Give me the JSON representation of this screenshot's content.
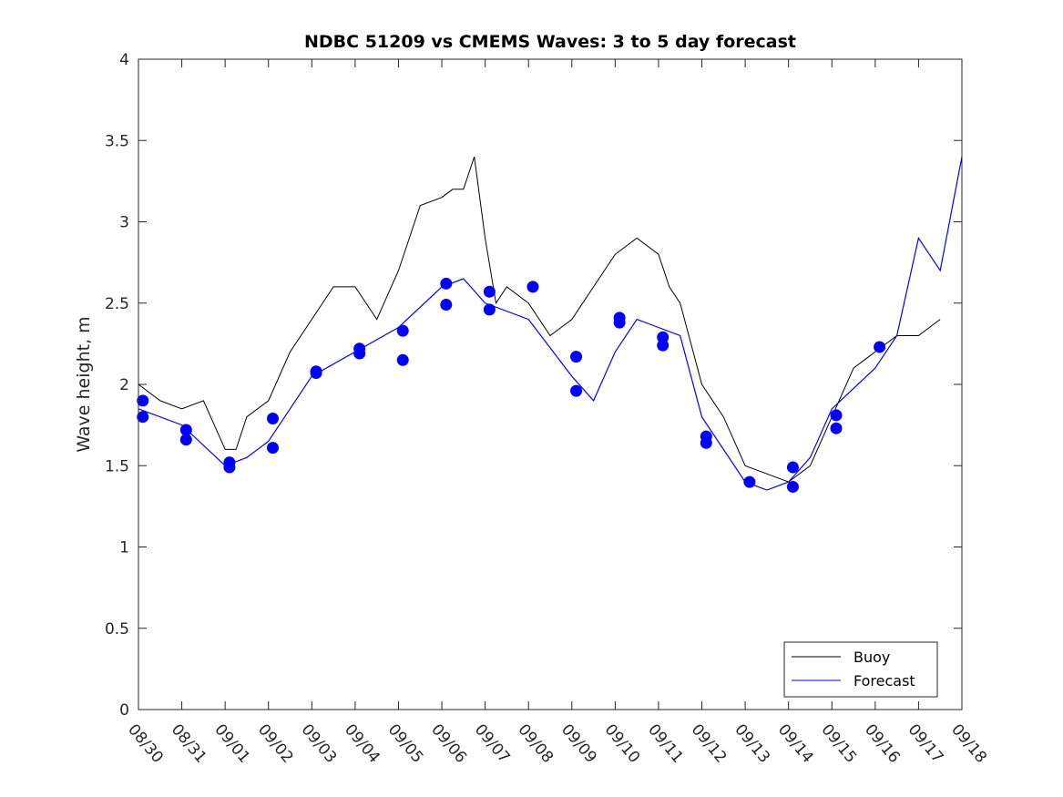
{
  "chart_data": {
    "type": "line",
    "title": "NDBC 51209 vs CMEMS Waves: 3 to 5 day forecast",
    "xlabel": "",
    "ylabel": "Wave height, m",
    "ylim": [
      0,
      4
    ],
    "yticks": [
      0,
      0.5,
      1,
      1.5,
      2,
      2.5,
      3,
      3.5,
      4
    ],
    "ytick_labels": [
      "0",
      "0.5",
      "1",
      "1.5",
      "2",
      "2.5",
      "3",
      "3.5",
      "4"
    ],
    "xlim": [
      0,
      19
    ],
    "xtick_labels": [
      "08/30",
      "08/31",
      "09/01",
      "09/02",
      "09/03",
      "09/04",
      "09/05",
      "09/06",
      "09/07",
      "09/08",
      "09/09",
      "09/10",
      "09/11",
      "09/12",
      "09/13",
      "09/14",
      "09/15",
      "09/16",
      "09/17",
      "09/18"
    ],
    "legend": {
      "position": "bottom-right",
      "entries": [
        "Buoy",
        "Forecast"
      ]
    },
    "colors": {
      "buoy": "#000000",
      "forecast": "#0000ff"
    },
    "series": [
      {
        "name": "Buoy",
        "x": [
          0,
          0.5,
          1,
          1.5,
          2,
          2.25,
          2.5,
          3,
          3.5,
          4,
          4.5,
          5,
          5.5,
          6,
          6.5,
          7,
          7.25,
          7.5,
          7.75,
          8,
          8.25,
          8.5,
          9,
          9.5,
          10,
          10.5,
          11,
          11.5,
          12,
          12.25,
          12.5,
          13,
          13.5,
          14,
          14.5,
          15,
          15.5,
          16,
          16.5,
          17,
          17.5,
          18,
          18.5
        ],
        "values": [
          2.0,
          1.9,
          1.85,
          1.9,
          1.6,
          1.6,
          1.8,
          1.9,
          2.2,
          2.4,
          2.6,
          2.6,
          2.4,
          2.7,
          3.1,
          3.15,
          3.2,
          3.2,
          3.4,
          2.9,
          2.5,
          2.6,
          2.5,
          2.3,
          2.4,
          2.6,
          2.8,
          2.9,
          2.8,
          2.6,
          2.5,
          2.0,
          1.8,
          1.5,
          1.45,
          1.4,
          1.5,
          1.8,
          2.1,
          2.2,
          2.3,
          2.3,
          2.4
        ]
      },
      {
        "name": "Forecast",
        "x": [
          0,
          1,
          2,
          2.5,
          3,
          4,
          5,
          6,
          7,
          7.5,
          8,
          9,
          10,
          10.5,
          11,
          11.5,
          12,
          12.5,
          13,
          14,
          14.5,
          15,
          15.5,
          16,
          17,
          17.5,
          18,
          18.5,
          19
        ],
        "values": [
          1.85,
          1.75,
          1.5,
          1.55,
          1.65,
          2.05,
          2.2,
          2.35,
          2.6,
          2.65,
          2.5,
          2.4,
          2.05,
          1.9,
          2.2,
          2.4,
          2.35,
          2.3,
          1.8,
          1.4,
          1.35,
          1.4,
          1.55,
          1.85,
          2.1,
          2.3,
          2.9,
          2.7,
          3.4
        ]
      },
      {
        "name": "Forecast markers",
        "x": [
          0.1,
          0.1,
          1.1,
          1.1,
          2.1,
          2.1,
          3.1,
          3.1,
          4.1,
          4.1,
          5.1,
          5.1,
          6.1,
          6.1,
          7.1,
          7.1,
          8.1,
          8.1,
          9.1,
          10.1,
          10.1,
          11.1,
          11.1,
          12.1,
          12.1,
          13.1,
          13.1,
          14.1,
          15.1,
          15.1,
          16.1,
          16.1,
          17.1
        ],
        "values": [
          1.9,
          1.8,
          1.72,
          1.66,
          1.52,
          1.49,
          1.79,
          1.61,
          2.08,
          2.07,
          2.22,
          2.19,
          2.33,
          2.15,
          2.62,
          2.49,
          2.57,
          2.46,
          2.6,
          2.17,
          1.96,
          2.41,
          2.38,
          2.29,
          2.24,
          1.68,
          1.64,
          1.4,
          1.49,
          1.37,
          1.81,
          1.73,
          2.23
        ]
      }
    ]
  }
}
